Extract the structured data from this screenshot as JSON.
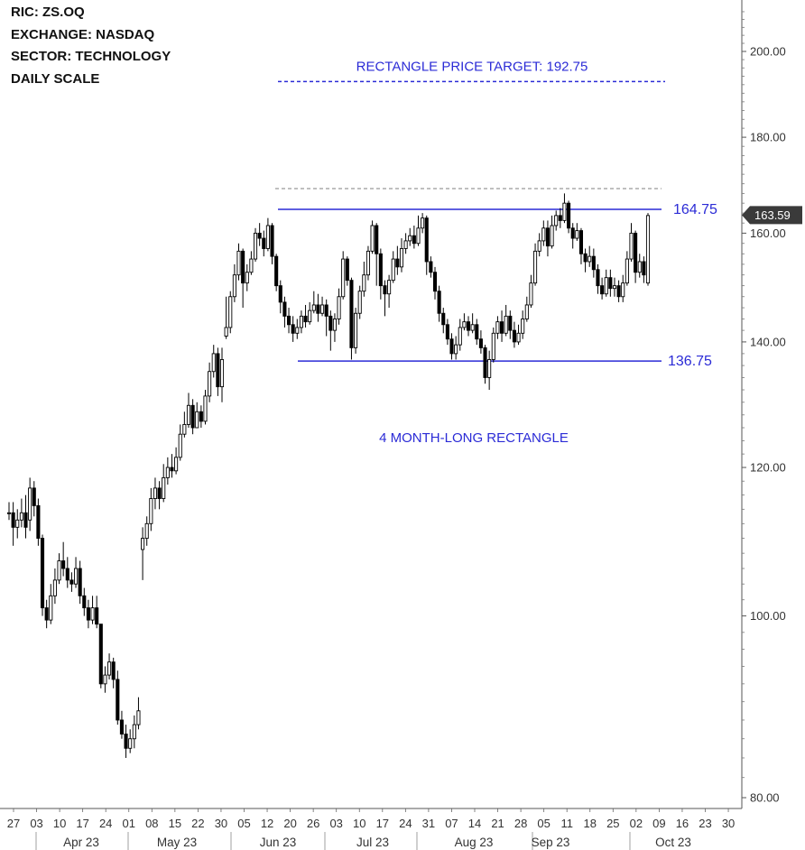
{
  "info": {
    "ric": "RIC:  ZS.OQ",
    "exchange": "EXCHANGE:  NASDAQ",
    "sector": "SECTOR: TECHNOLOGY",
    "scale": "DAILY SCALE"
  },
  "chart_data": {
    "type": "candlestick",
    "scale": "log",
    "ylim": [
      79,
      212
    ],
    "yticks": [
      {
        "value": 80,
        "label": "80.00"
      },
      {
        "value": 100,
        "label": "100.00"
      },
      {
        "value": 120,
        "label": "120.00"
      },
      {
        "value": 140,
        "label": "140.00"
      },
      {
        "value": 160,
        "label": "160.00"
      },
      {
        "value": 180,
        "label": "180.00"
      },
      {
        "value": 200,
        "label": "200.00"
      }
    ],
    "last_price": {
      "value": 163.59,
      "label": "163.59"
    },
    "day_labels": [
      "27",
      "03",
      "10",
      "17",
      "24",
      "01",
      "08",
      "15",
      "22",
      "30",
      "05",
      "12",
      "20",
      "26",
      "03",
      "10",
      "17",
      "24",
      "31",
      "07",
      "14",
      "21",
      "28",
      "05",
      "11",
      "18",
      "25",
      "02",
      "09",
      "16",
      "23",
      "30"
    ],
    "month_labels": [
      "Apr 23",
      "May 23",
      "Jun 23",
      "Jul 23",
      "Aug 23",
      "Sep 23",
      "Oct 23"
    ],
    "rectangle": {
      "resistance": {
        "value": 164.75,
        "label": "164.75"
      },
      "support": {
        "value": 136.75,
        "label": "136.75"
      },
      "label": "4 MONTH-LONG RECTANGLE"
    },
    "target": {
      "value": 192.75,
      "label": "RECTANGLE PRICE TARGET: 192.75"
    },
    "reference_line": {
      "value": 169
    },
    "candles": [
      [
        113.5,
        113.5,
        115.0,
        112.5
      ],
      [
        113.5,
        111.5,
        115.0,
        109.0
      ],
      [
        111.5,
        112.5,
        114.0,
        110.0
      ],
      [
        112.5,
        113.5,
        115.5,
        111.5
      ],
      [
        113.5,
        111.5,
        116.0,
        110.0
      ],
      [
        112.5,
        117.0,
        118.5,
        111.0
      ],
      [
        117.0,
        114.5,
        118.0,
        113.0
      ],
      [
        114.5,
        110.0,
        115.5,
        109.0
      ],
      [
        110.0,
        101.0,
        110.5,
        100.0
      ],
      [
        101.0,
        99.5,
        102.0,
        98.5
      ],
      [
        99.5,
        102.5,
        104.0,
        99.0
      ],
      [
        102.5,
        104.5,
        106.0,
        101.5
      ],
      [
        104.5,
        107.0,
        108.0,
        104.0
      ],
      [
        107.0,
        106.0,
        109.5,
        105.0
      ],
      [
        106.0,
        104.5,
        107.5,
        103.5
      ],
      [
        104.5,
        104.0,
        105.5,
        103.0
      ],
      [
        104.0,
        106.0,
        107.5,
        103.5
      ],
      [
        106.0,
        102.5,
        107.0,
        101.5
      ],
      [
        102.5,
        101.0,
        103.5,
        100.0
      ],
      [
        101.0,
        99.5,
        102.0,
        98.5
      ],
      [
        99.5,
        101.0,
        102.5,
        99.0
      ],
      [
        101.0,
        99.0,
        102.5,
        98.5
      ],
      [
        99.0,
        92.0,
        99.0,
        91.5
      ],
      [
        92.0,
        93.0,
        94.0,
        91.0
      ],
      [
        93.0,
        94.5,
        95.5,
        92.5
      ],
      [
        94.5,
        92.5,
        95.0,
        91.5
      ],
      [
        92.5,
        88.0,
        93.5,
        87.5
      ],
      [
        88.0,
        86.5,
        89.0,
        86.0
      ],
      [
        86.5,
        85.0,
        87.5,
        84.0
      ],
      [
        85.0,
        86.0,
        87.0,
        84.5
      ],
      [
        86.0,
        87.5,
        88.5,
        85.0
      ],
      [
        87.5,
        89.0,
        90.5,
        87.0
      ],
      [
        108.5,
        110.0,
        111.5,
        104.5
      ],
      [
        110.0,
        112.0,
        113.0,
        109.0
      ],
      [
        112.0,
        115.5,
        117.0,
        111.0
      ],
      [
        115.5,
        117.0,
        118.5,
        114.0
      ],
      [
        117.0,
        115.5,
        118.0,
        114.0
      ],
      [
        115.5,
        118.5,
        120.5,
        115.0
      ],
      [
        118.5,
        120.0,
        121.5,
        117.5
      ],
      [
        120.0,
        119.5,
        122.0,
        118.5
      ],
      [
        119.5,
        121.5,
        123.0,
        119.0
      ],
      [
        121.5,
        125.0,
        126.5,
        121.0
      ],
      [
        125.0,
        126.5,
        128.5,
        124.5
      ],
      [
        126.5,
        129.5,
        131.5,
        126.0
      ],
      [
        129.5,
        126.0,
        130.5,
        125.0
      ],
      [
        126.0,
        128.5,
        130.0,
        126.5
      ],
      [
        128.5,
        127.0,
        129.5,
        126.0
      ],
      [
        127.0,
        131.0,
        132.0,
        126.5
      ],
      [
        131.0,
        135.0,
        136.5,
        130.0
      ],
      [
        135.0,
        138.0,
        139.5,
        134.0
      ],
      [
        138.0,
        132.5,
        139.0,
        131.0
      ],
      [
        132.5,
        137.0,
        139.0,
        130.0
      ],
      [
        141.0,
        142.5,
        148.0,
        140.5
      ],
      [
        142.5,
        148.0,
        149.0,
        141.5
      ],
      [
        148.0,
        152.0,
        154.0,
        147.0
      ],
      [
        152.0,
        156.5,
        158.0,
        151.0
      ],
      [
        156.5,
        150.5,
        157.0,
        146.0
      ],
      [
        150.5,
        152.5,
        154.0,
        149.0
      ],
      [
        152.5,
        155.0,
        156.5,
        152.0
      ],
      [
        155.0,
        160.0,
        161.0,
        154.5
      ],
      [
        160.0,
        159.0,
        162.0,
        157.5
      ],
      [
        159.0,
        157.0,
        160.5,
        155.5
      ],
      [
        157.0,
        161.5,
        163.0,
        156.5
      ],
      [
        161.5,
        155.5,
        162.0,
        154.0
      ],
      [
        155.5,
        150.0,
        156.0,
        149.0
      ],
      [
        150.0,
        147.0,
        151.0,
        145.0
      ],
      [
        147.0,
        144.5,
        148.0,
        142.5
      ],
      [
        144.5,
        143.0,
        146.0,
        141.5
      ],
      [
        143.0,
        141.5,
        144.5,
        140.0
      ],
      [
        141.5,
        142.5,
        144.0,
        140.5
      ],
      [
        142.5,
        144.5,
        145.5,
        141.5
      ],
      [
        144.5,
        143.5,
        146.5,
        142.5
      ],
      [
        143.5,
        145.5,
        147.0,
        143.0
      ],
      [
        145.5,
        146.5,
        149.0,
        145.0
      ],
      [
        146.5,
        145.0,
        148.5,
        143.5
      ],
      [
        145.0,
        146.5,
        148.0,
        144.5
      ],
      [
        146.5,
        144.5,
        147.5,
        141.0
      ],
      [
        144.5,
        142.0,
        145.5,
        138.5
      ],
      [
        142.0,
        144.0,
        145.0,
        140.0
      ],
      [
        144.0,
        148.0,
        149.5,
        143.0
      ],
      [
        148.0,
        155.0,
        156.5,
        147.5
      ],
      [
        155.0,
        151.0,
        155.5,
        150.0
      ],
      [
        151.0,
        139.0,
        151.5,
        137.0
      ],
      [
        139.0,
        145.0,
        146.0,
        138.0
      ],
      [
        145.0,
        149.0,
        150.0,
        144.0
      ],
      [
        149.0,
        152.0,
        154.5,
        148.0
      ],
      [
        152.0,
        156.5,
        157.5,
        151.0
      ],
      [
        156.5,
        161.5,
        162.5,
        156.0
      ],
      [
        161.5,
        156.0,
        162.0,
        150.0
      ],
      [
        156.0,
        150.0,
        157.0,
        147.5
      ],
      [
        150.0,
        148.5,
        151.0,
        144.5
      ],
      [
        148.5,
        151.0,
        152.0,
        146.0
      ],
      [
        151.0,
        155.0,
        156.5,
        150.5
      ],
      [
        155.0,
        153.5,
        157.5,
        152.0
      ],
      [
        153.5,
        157.0,
        159.0,
        152.5
      ],
      [
        157.0,
        158.5,
        160.0,
        156.0
      ],
      [
        158.5,
        159.5,
        161.0,
        157.5
      ],
      [
        159.5,
        158.0,
        161.5,
        157.0
      ],
      [
        158.0,
        161.0,
        163.5,
        157.5
      ],
      [
        161.0,
        163.0,
        164.0,
        160.0
      ],
      [
        163.0,
        154.5,
        163.5,
        152.0
      ],
      [
        154.5,
        152.5,
        155.5,
        151.5
      ],
      [
        152.5,
        149.0,
        153.5,
        147.5
      ],
      [
        149.0,
        145.0,
        150.0,
        143.5
      ],
      [
        145.0,
        143.0,
        146.0,
        141.5
      ],
      [
        143.0,
        140.5,
        144.0,
        139.5
      ],
      [
        140.5,
        138.0,
        141.5,
        137.0
      ],
      [
        138.0,
        139.5,
        141.0,
        137.0
      ],
      [
        139.5,
        142.5,
        144.0,
        138.5
      ],
      [
        142.5,
        143.5,
        145.0,
        142.0
      ],
      [
        143.5,
        142.0,
        144.5,
        141.0
      ],
      [
        142.0,
        143.0,
        145.0,
        141.5
      ],
      [
        143.0,
        140.5,
        144.0,
        139.5
      ],
      [
        140.5,
        139.0,
        142.0,
        138.0
      ],
      [
        139.0,
        134.0,
        139.5,
        133.0
      ],
      [
        134.0,
        137.0,
        138.5,
        132.0
      ],
      [
        137.0,
        141.5,
        142.5,
        136.5
      ],
      [
        141.5,
        143.5,
        144.5,
        140.5
      ],
      [
        143.5,
        141.5,
        145.5,
        140.0
      ],
      [
        141.5,
        144.5,
        146.5,
        141.0
      ],
      [
        144.5,
        142.0,
        145.5,
        140.5
      ],
      [
        142.0,
        140.0,
        143.5,
        139.0
      ],
      [
        140.0,
        141.5,
        143.0,
        139.5
      ],
      [
        141.5,
        144.0,
        145.5,
        140.5
      ],
      [
        144.0,
        146.5,
        148.0,
        143.5
      ],
      [
        146.5,
        150.5,
        152.0,
        146.0
      ],
      [
        150.5,
        156.5,
        158.0,
        150.0
      ],
      [
        156.5,
        158.5,
        160.0,
        155.5
      ],
      [
        158.5,
        161.0,
        162.5,
        157.5
      ],
      [
        161.0,
        157.5,
        162.5,
        155.5
      ],
      [
        157.5,
        161.5,
        163.5,
        157.0
      ],
      [
        161.5,
        163.5,
        164.5,
        160.5
      ],
      [
        163.5,
        162.5,
        165.0,
        161.0
      ],
      [
        162.5,
        166.0,
        168.0,
        162.0
      ],
      [
        166.0,
        161.0,
        166.5,
        160.0
      ],
      [
        161.0,
        159.0,
        162.0,
        157.0
      ],
      [
        159.0,
        160.5,
        162.0,
        158.5
      ],
      [
        160.5,
        156.0,
        161.0,
        154.0
      ],
      [
        156.0,
        154.5,
        157.0,
        152.5
      ],
      [
        154.5,
        155.5,
        157.5,
        153.5
      ],
      [
        155.5,
        153.0,
        157.0,
        151.5
      ],
      [
        153.0,
        150.0,
        154.0,
        148.5
      ],
      [
        150.0,
        148.5,
        151.5,
        147.5
      ],
      [
        148.5,
        151.5,
        153.0,
        148.0
      ],
      [
        151.5,
        149.5,
        153.0,
        148.0
      ],
      [
        149.5,
        150.0,
        151.5,
        148.0
      ],
      [
        150.0,
        148.0,
        151.0,
        147.0
      ],
      [
        148.0,
        150.5,
        152.0,
        147.0
      ],
      [
        150.5,
        155.0,
        156.5,
        150.0
      ],
      [
        155.0,
        160.0,
        162.0,
        154.5
      ],
      [
        160.0,
        152.5,
        160.5,
        150.5
      ],
      [
        152.5,
        154.5,
        156.0,
        151.5
      ],
      [
        154.5,
        152.0,
        155.5,
        150.5
      ],
      [
        150.5,
        163.5,
        164.0,
        150.0
      ]
    ]
  }
}
